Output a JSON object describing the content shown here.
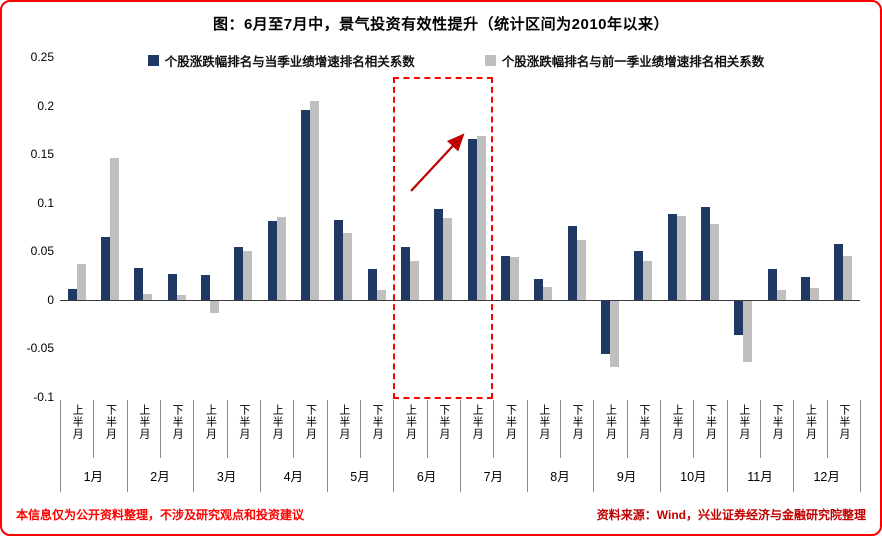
{
  "title": "图：6月至7月中，景气投资有效性提升（统计区间为2010年以来）",
  "footer": {
    "left": "本信息仅为公开资料整理，不涉及研究观点和投资建议",
    "right": "资料来源：Wind，兴业证券经济与金融研究院整理"
  },
  "colors": {
    "series1": "#1F3864",
    "series2": "#BFBFBF",
    "highlight_red": "#FF0000",
    "arrow_red": "#C00000",
    "axis_line": "#3A3A3A"
  },
  "chart_data": {
    "type": "bar",
    "title": "图：6月至7月中，景气投资有效性提升（统计区间为2010年以来）",
    "months": [
      "1月",
      "2月",
      "3月",
      "4月",
      "5月",
      "6月",
      "7月",
      "8月",
      "9月",
      "10月",
      "11月",
      "12月"
    ],
    "half_labels": [
      "上半月",
      "下半月"
    ],
    "categories": [
      "1月上半月",
      "1月下半月",
      "2月上半月",
      "2月下半月",
      "3月上半月",
      "3月下半月",
      "4月上半月",
      "4月下半月",
      "5月上半月",
      "5月下半月",
      "6月上半月",
      "6月下半月",
      "7月上半月",
      "7月下半月",
      "8月上半月",
      "8月下半月",
      "9月上半月",
      "9月下半月",
      "10月上半月",
      "10月下半月",
      "11月上半月",
      "11月下半月",
      "12月上半月",
      "12月下半月"
    ],
    "series": [
      {
        "name": "个股涨跌幅排名与当季业绩增速排名相关系数",
        "color": "#1F3864",
        "values": [
          0.011,
          0.065,
          0.033,
          0.027,
          0.026,
          0.054,
          0.081,
          0.195,
          0.082,
          0.032,
          0.054,
          0.094,
          0.166,
          0.045,
          0.021,
          0.076,
          -0.055,
          0.05,
          0.088,
          0.096,
          -0.035,
          0.032,
          0.024,
          0.057
        ]
      },
      {
        "name": "个股涨跌幅排名与前一季业绩增速排名相关系数",
        "color": "#BFBFBF",
        "values": [
          0.037,
          0.146,
          0.006,
          0.005,
          -0.012,
          0.05,
          0.085,
          0.205,
          0.069,
          0.01,
          0.04,
          0.084,
          0.169,
          0.044,
          0.013,
          0.062,
          -0.068,
          0.04,
          0.086,
          0.078,
          -0.063,
          0.01,
          0.012,
          0.045
        ]
      }
    ],
    "ylim": [
      -0.1,
      0.25
    ],
    "yticks": [
      0.25,
      0.2,
      0.15,
      0.1,
      0.05,
      0,
      -0.05,
      -0.1
    ],
    "ytick_labels": [
      "0.25",
      "0.2",
      "0.15",
      "0.1",
      "0.05",
      "0",
      "-0.05",
      "-0.1"
    ],
    "grid": false,
    "legend_position": "top",
    "highlight": {
      "start_index": 10,
      "end_index": 12,
      "note": "6月上半月至7月上半月"
    }
  }
}
